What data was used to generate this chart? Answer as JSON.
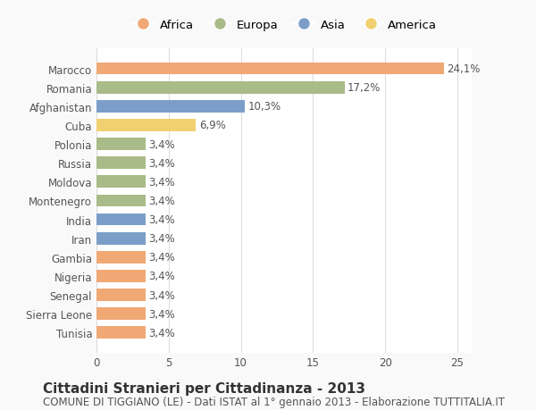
{
  "countries": [
    "Marocco",
    "Romania",
    "Afghanistan",
    "Cuba",
    "Polonia",
    "Russia",
    "Moldova",
    "Montenegro",
    "India",
    "Iran",
    "Gambia",
    "Nigeria",
    "Senegal",
    "Sierra Leone",
    "Tunisia"
  ],
  "values": [
    24.1,
    17.2,
    10.3,
    6.9,
    3.4,
    3.4,
    3.4,
    3.4,
    3.4,
    3.4,
    3.4,
    3.4,
    3.4,
    3.4,
    3.4
  ],
  "labels": [
    "24,1%",
    "17,2%",
    "10,3%",
    "6,9%",
    "3,4%",
    "3,4%",
    "3,4%",
    "3,4%",
    "3,4%",
    "3,4%",
    "3,4%",
    "3,4%",
    "3,4%",
    "3,4%",
    "3,4%"
  ],
  "continents": [
    "Africa",
    "Europa",
    "Asia",
    "America",
    "Europa",
    "Europa",
    "Europa",
    "Europa",
    "Asia",
    "Asia",
    "Africa",
    "Africa",
    "Africa",
    "Africa",
    "Africa"
  ],
  "colors": {
    "Africa": "#F0A875",
    "Europa": "#A8BB88",
    "Asia": "#7B9EC8",
    "America": "#F0D070"
  },
  "legend_order": [
    "Africa",
    "Europa",
    "Asia",
    "America"
  ],
  "title": "Cittadini Stranieri per Cittadinanza - 2013",
  "subtitle": "COMUNE DI TIGGIANO (LE) - Dati ISTAT al 1° gennaio 2013 - Elaborazione TUTTITALIA.IT",
  "xlim": [
    0,
    26
  ],
  "xticks": [
    0,
    5,
    10,
    15,
    20,
    25
  ],
  "background_color": "#f9f9f9",
  "bar_background": "#ffffff",
  "grid_color": "#dddddd",
  "title_fontsize": 11,
  "subtitle_fontsize": 8.5,
  "label_fontsize": 8.5,
  "tick_fontsize": 8.5
}
